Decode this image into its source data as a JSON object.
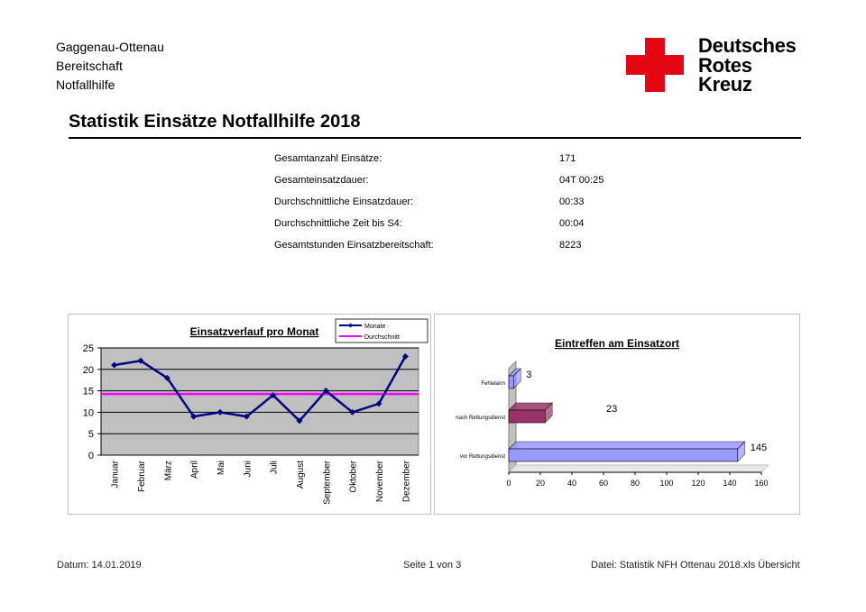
{
  "header": {
    "org_lines": [
      "Gaggenau-Ottenau",
      "Bereitschaft",
      "Notfallhilfe"
    ],
    "logo_lines": [
      "Deutsches",
      "Rotes",
      "Kreuz"
    ],
    "logo_color": "#e30613"
  },
  "title": "Statistik Einsätze Notfallhilfe 2018",
  "stats": [
    {
      "label": "Gesamtanzahl Einsätze:",
      "value": "171"
    },
    {
      "label": "Gesamteinsatzdauer:",
      "value": "04T 00:25"
    },
    {
      "label": "Durchschnittliche Einsatzdauer:",
      "value": "00:33"
    },
    {
      "label": "Durchschnittliche Zeit bis S4:",
      "value": "00:04"
    },
    {
      "label": "Gesamtstunden Einsatzbereitschaft:",
      "value": "8223"
    }
  ],
  "chart_data": [
    {
      "type": "line",
      "title": "Einsatzverlauf pro Monat",
      "categories": [
        "Januar",
        "Februar",
        "März",
        "April",
        "Mai",
        "Juni",
        "Juli",
        "August",
        "September",
        "Oktober",
        "November",
        "Dezember"
      ],
      "series": [
        {
          "name": "Monate",
          "values": [
            21,
            22,
            18,
            9,
            10,
            9,
            14,
            8,
            15,
            10,
            12,
            23
          ],
          "color": "#000080"
        },
        {
          "name": "Durchschnitt",
          "values": [
            14.25,
            14.25,
            14.25,
            14.25,
            14.25,
            14.25,
            14.25,
            14.25,
            14.25,
            14.25,
            14.25,
            14.25
          ],
          "color": "#ff00ff"
        }
      ],
      "ylim": [
        0,
        25
      ],
      "yticks": [
        0,
        5,
        10,
        15,
        20,
        25
      ],
      "grid": true,
      "legend": "top-right",
      "plot_background": "#c0c0c0"
    },
    {
      "type": "bar",
      "orientation": "horizontal",
      "title": "Eintreffen am Einsatzort",
      "categories": [
        "Fehlalarm",
        "nach Rettungsdienst",
        "vor Rettungsdienst"
      ],
      "values": [
        3,
        23,
        145
      ],
      "value_labels": [
        "3",
        "23",
        "145"
      ],
      "colors": [
        "#9999ff",
        "#993366",
        "#9999ff"
      ],
      "xlim": [
        0,
        160
      ],
      "xticks": [
        0,
        20,
        40,
        60,
        80,
        100,
        120,
        140,
        160
      ],
      "grid": false
    }
  ],
  "footer": {
    "date": "Datum: 14.01.2019",
    "page": "Seite 1 von 3",
    "file": "Datei: Statistik NFH Ottenau 2018.xls Übersicht"
  }
}
